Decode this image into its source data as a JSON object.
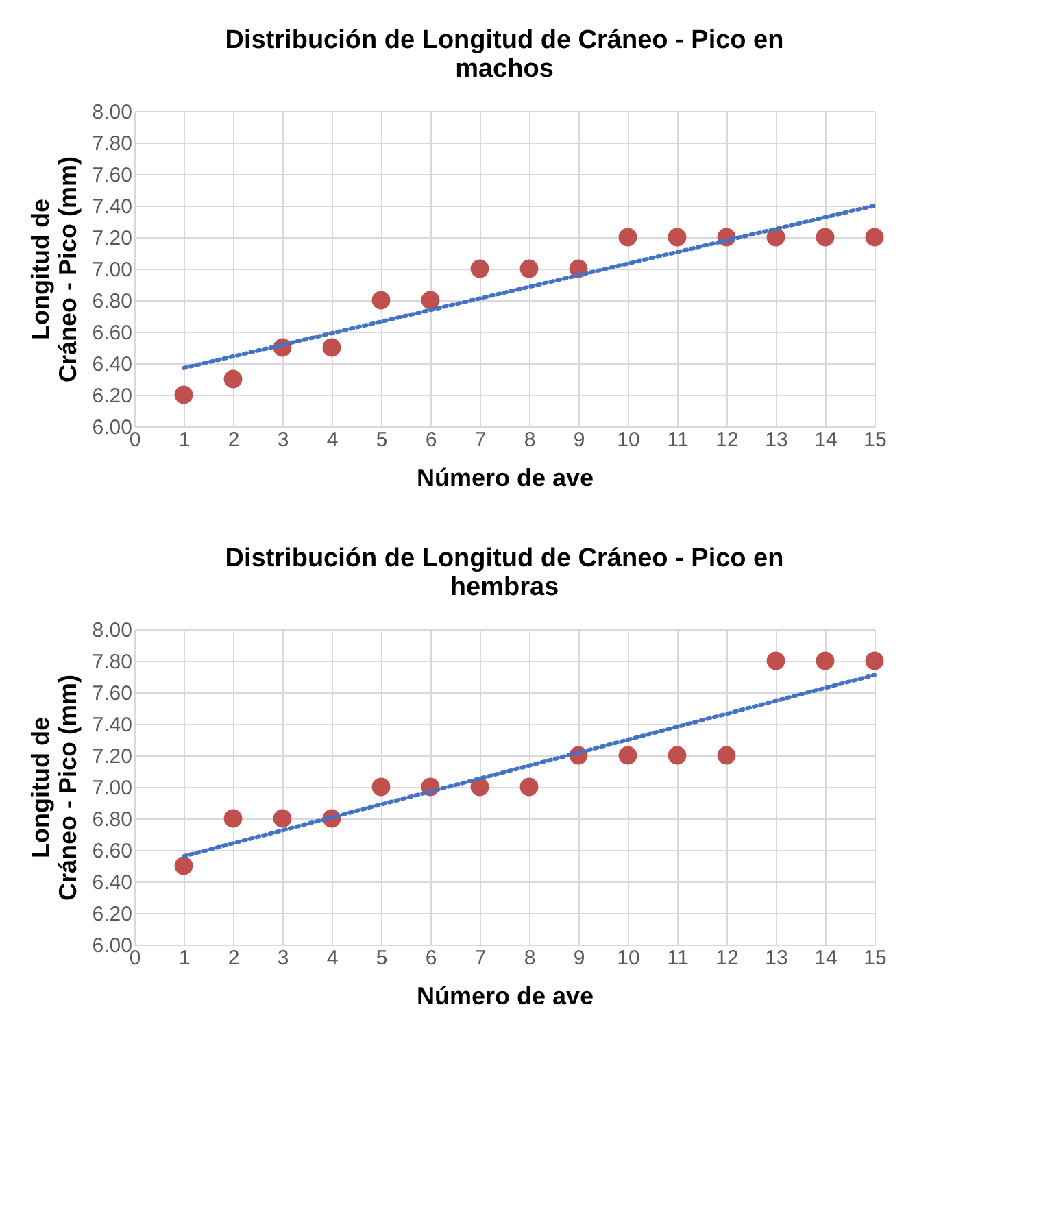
{
  "chart_data": [
    {
      "type": "scatter",
      "title": "Distribución de Longitud de Cráneo - Pico en\nmachos",
      "xlabel": "Número de ave",
      "ylabel": "Longitud de\nCráneo - Pico (mm)",
      "xlim": [
        0,
        15
      ],
      "xticks": [
        0,
        1,
        2,
        3,
        4,
        5,
        6,
        7,
        8,
        9,
        10,
        11,
        12,
        13,
        14,
        15
      ],
      "ylim": [
        6,
        8
      ],
      "yticks": [
        {
          "value": 6,
          "label": "6.00"
        },
        {
          "value": 6.2,
          "label": "6.20"
        },
        {
          "value": 6.4,
          "label": "6.40"
        },
        {
          "value": 6.6,
          "label": "6.60"
        },
        {
          "value": 6.8,
          "label": "6.80"
        },
        {
          "value": 7,
          "label": "7.00"
        },
        {
          "value": 7.2,
          "label": "7.20"
        },
        {
          "value": 7.4,
          "label": "7.40"
        },
        {
          "value": 7.6,
          "label": "7.60"
        },
        {
          "value": 7.8,
          "label": "7.80"
        },
        {
          "value": 8,
          "label": "8.00"
        }
      ],
      "grid": true,
      "marker": "circle",
      "series": [
        {
          "type": "scatter",
          "color": "#c0504d",
          "x": [
            1,
            2,
            3,
            4,
            5,
            6,
            7,
            8,
            9,
            10,
            11,
            12,
            13,
            14,
            15
          ],
          "values": [
            6.2,
            6.3,
            6.5,
            6.5,
            6.8,
            6.8,
            7.0,
            7.0,
            7.0,
            7.2,
            7.2,
            7.2,
            7.2,
            7.2,
            7.2
          ]
        },
        {
          "type": "line",
          "marker": "none",
          "color": "#4472c4",
          "line_style": "dotted",
          "x": [
            1,
            15
          ],
          "values": [
            6.37,
            7.4
          ]
        }
      ]
    },
    {
      "type": "scatter",
      "title": "Distribución de Longitud de Cráneo - Pico en\nhembras",
      "xlabel": "Número de ave",
      "ylabel": "Longitud de\nCráneo - Pico  (mm)",
      "xlim": [
        0,
        15
      ],
      "xticks": [
        0,
        1,
        2,
        3,
        4,
        5,
        6,
        7,
        8,
        9,
        10,
        11,
        12,
        13,
        14,
        15
      ],
      "ylim": [
        6,
        8
      ],
      "yticks": [
        {
          "value": 6,
          "label": "6.00"
        },
        {
          "value": 6.2,
          "label": "6.20"
        },
        {
          "value": 6.4,
          "label": "6.40"
        },
        {
          "value": 6.6,
          "label": "6.60"
        },
        {
          "value": 6.8,
          "label": "6.80"
        },
        {
          "value": 7,
          "label": "7.00"
        },
        {
          "value": 7.2,
          "label": "7.20"
        },
        {
          "value": 7.4,
          "label": "7.40"
        },
        {
          "value": 7.6,
          "label": "7.60"
        },
        {
          "value": 7.8,
          "label": "7.80"
        },
        {
          "value": 8,
          "label": "8.00"
        }
      ],
      "grid": true,
      "marker": "circle",
      "series": [
        {
          "type": "scatter",
          "color": "#c0504d",
          "x": [
            1,
            2,
            3,
            4,
            5,
            6,
            7,
            8,
            9,
            10,
            11,
            12,
            13,
            14,
            15
          ],
          "values": [
            6.5,
            6.8,
            6.8,
            6.8,
            7.0,
            7.0,
            7.0,
            7.0,
            7.2,
            7.2,
            7.2,
            7.2,
            7.8,
            7.8,
            7.8
          ]
        },
        {
          "type": "line",
          "marker": "none",
          "color": "#4472c4",
          "line_style": "dotted",
          "x": [
            1,
            15
          ],
          "values": [
            6.56,
            7.71
          ]
        }
      ]
    }
  ]
}
